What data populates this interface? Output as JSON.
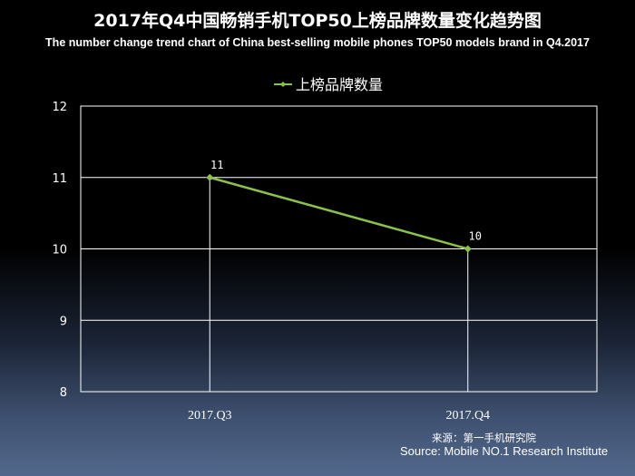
{
  "title": "2017年Q4中国畅销手机TOP50上榜品牌数量变化趋势图",
  "subtitle": "The number change trend chart of China best-selling mobile phones TOP50 models brand in Q4.2017",
  "source_cn": "来源：第一手机研究院",
  "source_en": "Source: Mobile NO.1 Research Institute",
  "colors": {
    "series": "#8bc34a",
    "grid": "#ffffff",
    "background": "#000000"
  },
  "chart_data": {
    "type": "line",
    "title": "2017年Q4中国畅销手机TOP50上榜品牌数量变化趋势图",
    "subtitle": "The number change trend chart of China best-selling mobile phones TOP50 models brand in Q4.2017",
    "categories": [
      "2017.Q3",
      "2017.Q4"
    ],
    "series": [
      {
        "name": "上榜品牌数量",
        "values": [
          11,
          10
        ],
        "color": "#8bc34a"
      }
    ],
    "data_labels": [
      "11",
      "10"
    ],
    "yticks": [
      "12",
      "11",
      "10",
      "9",
      "8"
    ],
    "ylim": [
      8,
      12
    ],
    "xlabel": "",
    "ylabel": "",
    "grid": "horizontal",
    "legend": "top-center"
  }
}
